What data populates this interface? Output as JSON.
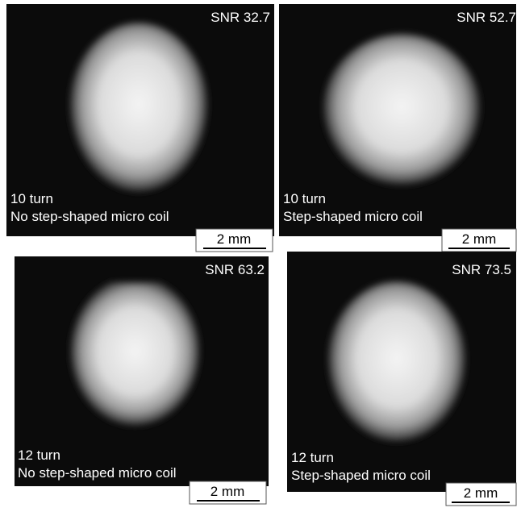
{
  "panels": [
    {
      "snr": "SNR 32.7",
      "label": [
        "10 turn",
        "No step-shaped micro coil"
      ],
      "scale": "2 mm"
    },
    {
      "snr": "SNR 52.7",
      "label": [
        "10 turn",
        "Step-shaped micro coil"
      ],
      "scale": "2 mm"
    },
    {
      "snr": "SNR 63.2",
      "label": [
        "12 turn",
        "No step-shaped micro coil"
      ],
      "scale": "2 mm"
    },
    {
      "snr": "SNR 73.5",
      "label": [
        "12 turn",
        "Step-shaped micro coil"
      ],
      "scale": "2 mm"
    }
  ]
}
